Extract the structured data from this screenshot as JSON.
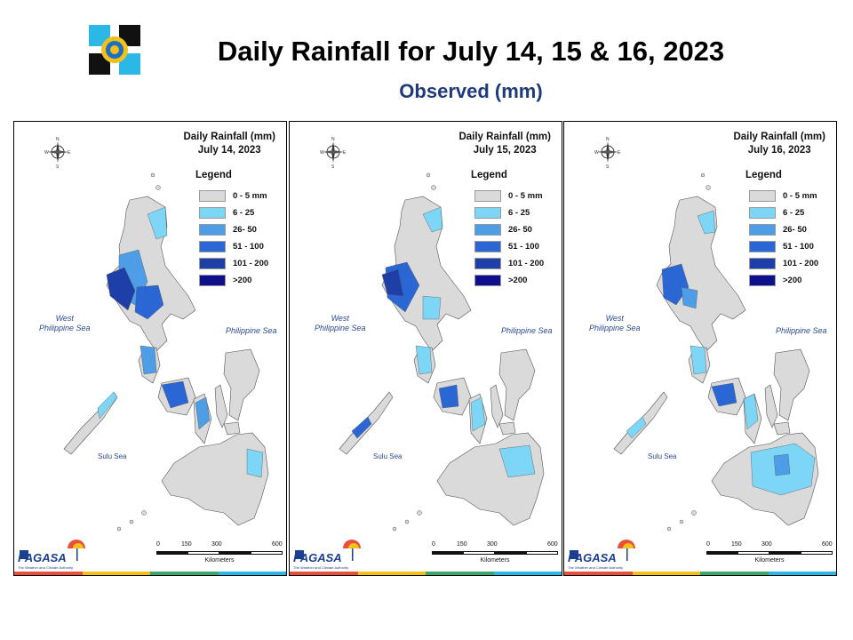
{
  "header": {
    "title": "Daily Rainfall for July 14, 15 & 16, 2023",
    "subtitle": "Observed (mm)"
  },
  "legend_colors": {
    "c0": "#dadada",
    "c1": "#7dd6f5",
    "c2": "#4d9ee6",
    "c3": "#2a66d4",
    "c4": "#1e3ea8",
    "c5": "#0d0f8c"
  },
  "panels": [
    {
      "title_line1": "Daily Rainfall (mm)",
      "title_line2": "July 14, 2023",
      "legend_title": "Legend",
      "legend": [
        "0 - 5 mm",
        "6 - 25",
        "26- 50",
        "51 - 100",
        "101 - 200",
        ">200"
      ],
      "labels": {
        "west_sea_1": "West",
        "west_sea_2": "Philippine Sea",
        "east_sea": "Philippine Sea",
        "sulu_sea": "Sulu Sea"
      },
      "compass": {
        "n": "N",
        "s": "S",
        "e": "E",
        "w": "W"
      },
      "scale": {
        "s0": "0",
        "s1": "150",
        "s2": "300",
        "s3": "600",
        "unit": "Kilometers"
      },
      "logo": {
        "dost": "DOST",
        "name": "PAGASA",
        "tagline": "The Weather and Climate Authority"
      }
    },
    {
      "title_line1": "Daily Rainfall (mm)",
      "title_line2": "July 15, 2023",
      "legend_title": "Legend",
      "legend": [
        "0 - 5 mm",
        "6 - 25",
        "26- 50",
        "51 - 100",
        "101 - 200",
        ">200"
      ],
      "labels": {
        "west_sea_1": "West",
        "west_sea_2": "Philippine Sea",
        "east_sea": "Philippine Sea",
        "sulu_sea": "Sulu Sea"
      },
      "compass": {
        "n": "N",
        "s": "S",
        "e": "E",
        "w": "W"
      },
      "scale": {
        "s0": "0",
        "s1": "150",
        "s2": "300",
        "s3": "600",
        "unit": "Kilometers"
      },
      "logo": {
        "dost": "DOST",
        "name": "PAGASA",
        "tagline": "The Weather and Climate Authority"
      }
    },
    {
      "title_line1": "Daily Rainfall (mm)",
      "title_line2": "July 16, 2023",
      "legend_title": "Legend",
      "legend": [
        "0 - 5 mm",
        "6 - 25",
        "26- 50",
        "51 - 100",
        "101 - 200",
        ">200"
      ],
      "labels": {
        "west_sea_1": "West",
        "west_sea_2": "Philippine Sea",
        "east_sea": "Philippine Sea",
        "sulu_sea": "Sulu Sea"
      },
      "compass": {
        "n": "N",
        "s": "S",
        "e": "E",
        "w": "W"
      },
      "scale": {
        "s0": "0",
        "s1": "150",
        "s2": "300",
        "s3": "600",
        "unit": "Kilometers"
      },
      "logo": {
        "dost": "DOST",
        "name": "PAGASA",
        "tagline": "The Weather and Climate Authority"
      }
    }
  ]
}
